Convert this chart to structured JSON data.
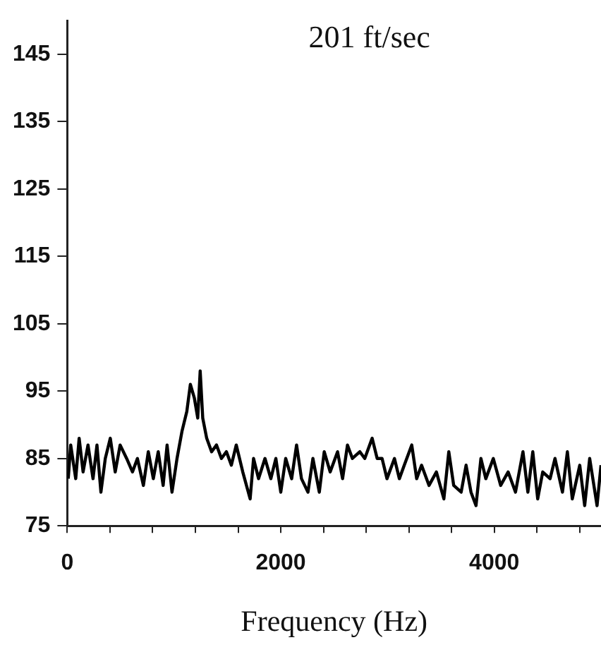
{
  "chart_data": {
    "type": "line",
    "title": "201 ft/sec",
    "xlabel": "Frequency (Hz)",
    "xlim": [
      0,
      5000
    ],
    "xticks": [
      0,
      {
        "value": 400,
        "label": null
      },
      {
        "value": 800,
        "label": null
      },
      {
        "value": 1200,
        "label": null
      },
      {
        "value": 1600,
        "label": null
      },
      2000,
      {
        "value": 2400,
        "label": null
      },
      {
        "value": 2800,
        "label": null
      },
      {
        "value": 3200,
        "label": null
      },
      {
        "value": 3600,
        "label": null
      },
      4000,
      {
        "value": 4400,
        "label": null
      },
      {
        "value": 4800,
        "label": null
      }
    ],
    "ylim": [
      75,
      150
    ],
    "yticks": [
      75,
      85,
      95,
      105,
      115,
      125,
      135,
      145
    ],
    "grid": false,
    "legend": false,
    "marker": "none",
    "line_style": "solid",
    "x": [
      9,
      32,
      79,
      111,
      148,
      194,
      241,
      278,
      315,
      356,
      403,
      449,
      495,
      556,
      611,
      657,
      713,
      759,
      806,
      852,
      898,
      935,
      981,
      1028,
      1074,
      1120,
      1153,
      1190,
      1222,
      1245,
      1269,
      1306,
      1352,
      1398,
      1444,
      1491,
      1537,
      1583,
      1644,
      1713,
      1745,
      1792,
      1852,
      1907,
      1954,
      2000,
      2046,
      2102,
      2148,
      2194,
      2255,
      2301,
      2361,
      2407,
      2463,
      2532,
      2579,
      2625,
      2671,
      2741,
      2787,
      2856,
      2903,
      2949,
      2995,
      3065,
      3111,
      3157,
      3227,
      3273,
      3319,
      3389,
      3458,
      3528,
      3574,
      3620,
      3690,
      3736,
      3782,
      3829,
      3875,
      3921,
      3991,
      4060,
      4130,
      4199,
      4269,
      4315,
      4361,
      4407,
      4454,
      4523,
      4569,
      4639,
      4685,
      4731,
      4801,
      4847,
      4894,
      4963,
      5000
    ],
    "series": [
      {
        "color": "#000000",
        "values": [
          82,
          87,
          82,
          88,
          83,
          87,
          82,
          87,
          80,
          85,
          88,
          83,
          87,
          85,
          83,
          85,
          81,
          86,
          82,
          86,
          81,
          87,
          80,
          85,
          89,
          92,
          96,
          94,
          91,
          98,
          91,
          88,
          86,
          87,
          85,
          86,
          84,
          87,
          83,
          79,
          85,
          82,
          85,
          82,
          85,
          80,
          85,
          82,
          87,
          82,
          80,
          85,
          80,
          86,
          83,
          86,
          82,
          87,
          85,
          86,
          85,
          88,
          85,
          85,
          82,
          85,
          82,
          84,
          87,
          82,
          84,
          81,
          83,
          79,
          86,
          81,
          80,
          84,
          80,
          78,
          85,
          82,
          85,
          81,
          83,
          80,
          86,
          80,
          86,
          79,
          83,
          82,
          85,
          80,
          86,
          79,
          84,
          78,
          85,
          78,
          84
        ]
      }
    ]
  }
}
